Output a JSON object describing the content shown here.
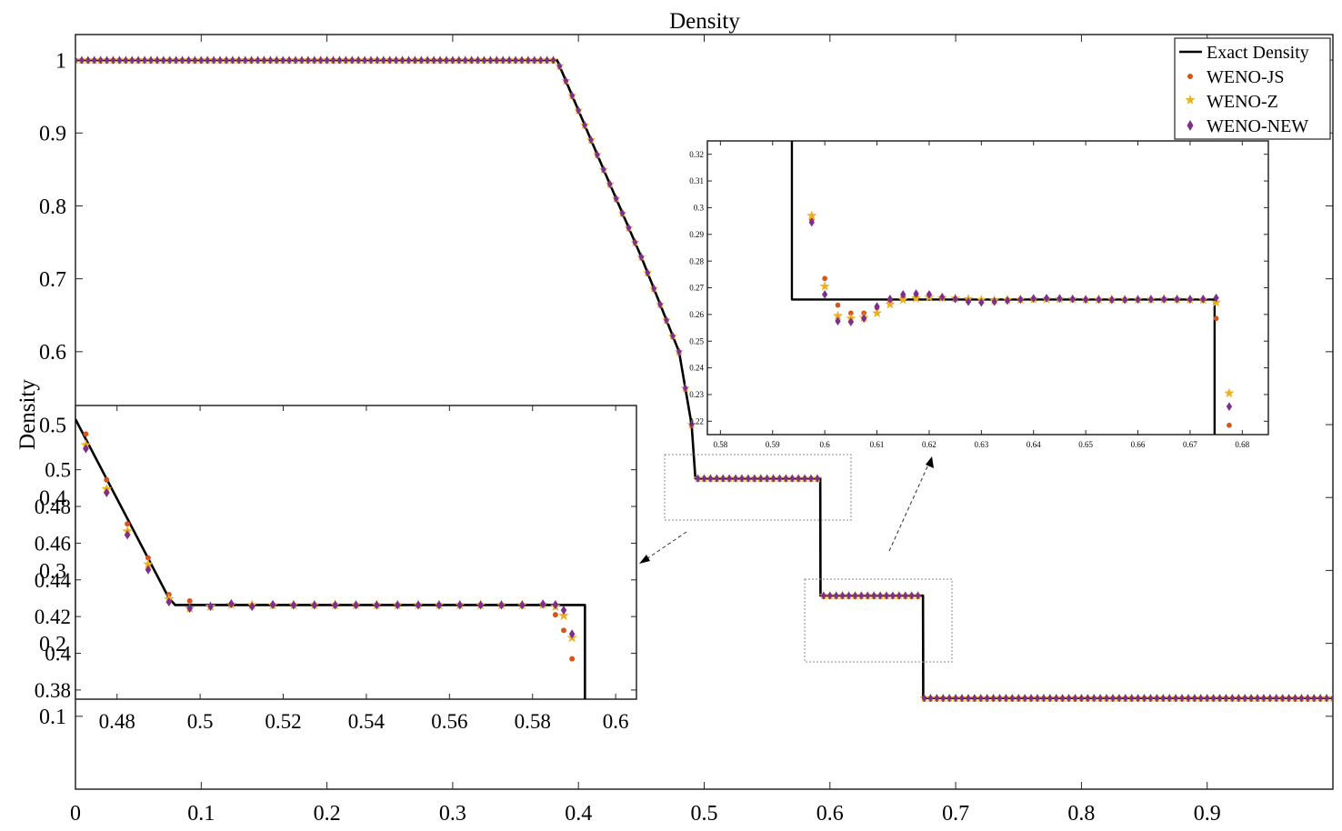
{
  "colors": {
    "exact": "#000000",
    "weno_js": "#d95319",
    "weno_z": "#edb120",
    "weno_new": "#7e2f8e",
    "frame": "#262626",
    "zoom_box": "#555555"
  },
  "chart_data": [
    {
      "id": "main",
      "type": "scatter",
      "title": "Density",
      "xlabel": "",
      "ylabel": "Density",
      "xlim": [
        0,
        1
      ],
      "ylim": [
        0,
        1.035
      ],
      "xticks": [
        0,
        0.1,
        0.2,
        0.3,
        0.4,
        0.5,
        0.6,
        0.7,
        0.8,
        0.9
      ],
      "xtick_labels": [
        "0",
        "0.1",
        "0.2",
        "0.3",
        "0.4",
        "0.5",
        "0.6",
        "0.7",
        "0.8",
        "0.9"
      ],
      "yticks": [
        0.1,
        0.2,
        0.3,
        0.4,
        0.5,
        0.6,
        0.7,
        0.8,
        0.9,
        1
      ],
      "ytick_labels": [
        "0.1",
        "0.2",
        "0.3",
        "0.4",
        "0.5",
        "0.6",
        "0.7",
        "0.8",
        "0.9",
        "1"
      ],
      "grid": false,
      "legend": {
        "position": "top-right",
        "entries": [
          {
            "label": "Exact Density",
            "marker": "line"
          },
          {
            "label": "WENO-JS",
            "marker": "dot"
          },
          {
            "label": "WENO-Z",
            "marker": "star"
          },
          {
            "label": "WENO-NEW",
            "marker": "diamond"
          }
        ]
      },
      "series": [
        {
          "name": "Exact Density",
          "kind": "line",
          "x": [
            0,
            0.383,
            0.42,
            0.45,
            0.48,
            0.49,
            0.493,
            0.5923,
            0.5924,
            0.5925,
            0.6,
            0.674,
            0.6741,
            0.6742,
            0.675,
            1
          ],
          "y": [
            1,
            1,
            0.85,
            0.73,
            0.6,
            0.5,
            0.4263,
            0.4263,
            0.35,
            0.2656,
            0.2656,
            0.2656,
            0.2,
            0.125,
            0.125,
            0.125
          ]
        },
        {
          "name": "WENO-JS",
          "kind": "markers",
          "marker": "dot",
          "sampled_from": "Exact Density",
          "dx": 0.005
        },
        {
          "name": "WENO-Z",
          "kind": "markers",
          "marker": "star",
          "sampled_from": "Exact Density",
          "dx": 0.005
        },
        {
          "name": "WENO-NEW",
          "kind": "markers",
          "marker": "diamond",
          "sampled_from": "Exact Density",
          "dx": 0.005
        }
      ]
    },
    {
      "id": "inset_left",
      "type": "scatter",
      "xlim": [
        0.47,
        0.605
      ],
      "ylim": [
        0.375,
        0.535
      ],
      "xticks": [
        0.48,
        0.5,
        0.52,
        0.54,
        0.56,
        0.58,
        0.6
      ],
      "xtick_labels": [
        "0.48",
        "0.5",
        "0.52",
        "0.54",
        "0.56",
        "0.58",
        "0.6"
      ],
      "yticks": [
        0.38,
        0.4,
        0.42,
        0.44,
        0.46,
        0.48,
        0.5
      ],
      "ytick_labels": [
        "0.38",
        "0.4",
        "0.42",
        "0.44",
        "0.46",
        "0.48",
        "0.5"
      ],
      "series": [
        {
          "name": "Exact Density",
          "kind": "line",
          "x": [
            0.47,
            0.4925,
            0.494,
            0.5924,
            0.5926,
            0.5926
          ],
          "y": [
            0.5275,
            0.43,
            0.4263,
            0.4263,
            0.4263,
            0.375
          ]
        },
        {
          "name": "WENO-JS",
          "kind": "markers",
          "marker": "dot",
          "x": [
            0.4725,
            0.4775,
            0.4825,
            0.4875,
            0.4925,
            0.4975,
            0.5025,
            0.5075,
            0.5125,
            0.5175,
            0.5225,
            0.5275,
            0.5325,
            0.5375,
            0.5425,
            0.5475,
            0.5525,
            0.5575,
            0.5625,
            0.5675,
            0.5725,
            0.5775,
            0.5825,
            0.5855,
            0.5875,
            0.5895
          ],
          "y": [
            0.5195,
            0.4945,
            0.4705,
            0.452,
            0.432,
            0.4285,
            0.4255,
            0.4265,
            0.426,
            0.4265,
            0.4263,
            0.4263,
            0.4263,
            0.4263,
            0.4263,
            0.4263,
            0.4263,
            0.4263,
            0.4263,
            0.4263,
            0.4263,
            0.4263,
            0.4265,
            0.421,
            0.4125,
            0.397
          ]
        },
        {
          "name": "WENO-Z",
          "kind": "markers",
          "marker": "star",
          "x": [
            0.4725,
            0.4775,
            0.4825,
            0.4875,
            0.4925,
            0.4975,
            0.5025,
            0.5075,
            0.5125,
            0.5175,
            0.5225,
            0.5275,
            0.5325,
            0.5375,
            0.5425,
            0.5475,
            0.5525,
            0.5575,
            0.5625,
            0.5675,
            0.5725,
            0.5775,
            0.5825,
            0.5855,
            0.5875,
            0.5895
          ],
          "y": [
            0.5135,
            0.4895,
            0.4665,
            0.4485,
            0.4295,
            0.4245,
            0.4255,
            0.4265,
            0.4263,
            0.4262,
            0.4263,
            0.4263,
            0.4263,
            0.4263,
            0.4263,
            0.4263,
            0.4263,
            0.4263,
            0.4263,
            0.4263,
            0.4263,
            0.4263,
            0.4265,
            0.4255,
            0.4205,
            0.4085
          ]
        },
        {
          "name": "WENO-NEW",
          "kind": "markers",
          "marker": "diamond",
          "x": [
            0.4725,
            0.4775,
            0.4825,
            0.4875,
            0.4925,
            0.4975,
            0.5025,
            0.5075,
            0.5125,
            0.5175,
            0.5225,
            0.5275,
            0.5325,
            0.5375,
            0.5425,
            0.5475,
            0.5525,
            0.5575,
            0.5625,
            0.5675,
            0.5725,
            0.5775,
            0.5825,
            0.5855,
            0.5875,
            0.5895
          ],
          "y": [
            0.5115,
            0.4875,
            0.4645,
            0.4455,
            0.428,
            0.4245,
            0.4255,
            0.427,
            0.4255,
            0.4265,
            0.4263,
            0.4263,
            0.4263,
            0.4263,
            0.4263,
            0.4263,
            0.4263,
            0.4263,
            0.4263,
            0.4263,
            0.4263,
            0.4263,
            0.4268,
            0.4265,
            0.4235,
            0.4105
          ]
        }
      ]
    },
    {
      "id": "inset_right",
      "type": "scatter",
      "xlim": [
        0.5775,
        0.685
      ],
      "ylim": [
        0.215,
        0.325
      ],
      "xticks": [
        0.58,
        0.59,
        0.6,
        0.61,
        0.62,
        0.63,
        0.64,
        0.65,
        0.66,
        0.67,
        0.68
      ],
      "xtick_labels": [
        "0.58",
        "0.59",
        "0.6",
        "0.61",
        "0.62",
        "0.63",
        "0.64",
        "0.65",
        "0.66",
        "0.67",
        "0.68"
      ],
      "yticks": [
        0.22,
        0.23,
        0.24,
        0.25,
        0.26,
        0.27,
        0.28,
        0.29,
        0.3,
        0.31,
        0.32
      ],
      "ytick_labels": [
        "0.22",
        "0.23",
        "0.24",
        "0.25",
        "0.26",
        "0.27",
        "0.28",
        "0.29",
        "0.3",
        "0.31",
        "0.32"
      ],
      "series": [
        {
          "name": "Exact Density",
          "kind": "line",
          "x": [
            0.5937,
            0.5937,
            0.6747,
            0.6747
          ],
          "y": [
            0.325,
            0.2656,
            0.2656,
            0.215
          ]
        },
        {
          "name": "WENO-JS",
          "kind": "markers",
          "marker": "dot",
          "x": [
            0.5975,
            0.6,
            0.6025,
            0.605,
            0.6075,
            0.61,
            0.6125,
            0.615,
            0.6175,
            0.62,
            0.6225,
            0.625,
            0.6275,
            0.63,
            0.6325,
            0.635,
            0.6375,
            0.64,
            0.6425,
            0.645,
            0.6475,
            0.65,
            0.6525,
            0.655,
            0.6575,
            0.66,
            0.6625,
            0.665,
            0.6675,
            0.67,
            0.6725,
            0.675,
            0.6775
          ],
          "y": [
            0.2955,
            0.2735,
            0.2635,
            0.2605,
            0.2605,
            0.2625,
            0.265,
            0.2665,
            0.2668,
            0.2665,
            0.2663,
            0.2658,
            0.2655,
            0.2653,
            0.2654,
            0.2656,
            0.2657,
            0.2657,
            0.2657,
            0.2657,
            0.2657,
            0.2656,
            0.2656,
            0.2656,
            0.2656,
            0.2656,
            0.2656,
            0.2656,
            0.2656,
            0.2655,
            0.2652,
            0.2585,
            0.2185
          ]
        },
        {
          "name": "WENO-Z",
          "kind": "markers",
          "marker": "star",
          "x": [
            0.5975,
            0.6,
            0.6025,
            0.605,
            0.6075,
            0.61,
            0.6125,
            0.615,
            0.6175,
            0.62,
            0.6225,
            0.625,
            0.6275,
            0.63,
            0.6325,
            0.635,
            0.6375,
            0.64,
            0.6425,
            0.645,
            0.6475,
            0.65,
            0.6525,
            0.655,
            0.6575,
            0.66,
            0.6625,
            0.665,
            0.6675,
            0.67,
            0.6725,
            0.675,
            0.6775
          ],
          "y": [
            0.297,
            0.2705,
            0.2595,
            0.2585,
            0.2588,
            0.2605,
            0.2638,
            0.2655,
            0.266,
            0.2665,
            0.2662,
            0.266,
            0.2658,
            0.2655,
            0.2653,
            0.2655,
            0.2656,
            0.2657,
            0.2657,
            0.2657,
            0.2657,
            0.2656,
            0.2656,
            0.2656,
            0.2656,
            0.2656,
            0.2656,
            0.2657,
            0.2657,
            0.2656,
            0.2655,
            0.2645,
            0.2305
          ]
        },
        {
          "name": "WENO-NEW",
          "kind": "markers",
          "marker": "diamond",
          "x": [
            0.5975,
            0.6,
            0.6025,
            0.605,
            0.6075,
            0.61,
            0.6125,
            0.615,
            0.6175,
            0.62,
            0.6225,
            0.625,
            0.6275,
            0.63,
            0.6325,
            0.635,
            0.6375,
            0.64,
            0.6425,
            0.645,
            0.6475,
            0.65,
            0.6525,
            0.655,
            0.6575,
            0.66,
            0.6625,
            0.665,
            0.6675,
            0.67,
            0.6725,
            0.675,
            0.6775
          ],
          "y": [
            0.2945,
            0.2675,
            0.2575,
            0.2572,
            0.2585,
            0.263,
            0.2658,
            0.2675,
            0.2678,
            0.2675,
            0.2665,
            0.2658,
            0.2648,
            0.2645,
            0.2648,
            0.2652,
            0.2656,
            0.266,
            0.2661,
            0.266,
            0.2658,
            0.2656,
            0.2656,
            0.2655,
            0.2655,
            0.2656,
            0.2657,
            0.2657,
            0.2657,
            0.2657,
            0.2658,
            0.2662,
            0.2255
          ]
        }
      ]
    }
  ]
}
